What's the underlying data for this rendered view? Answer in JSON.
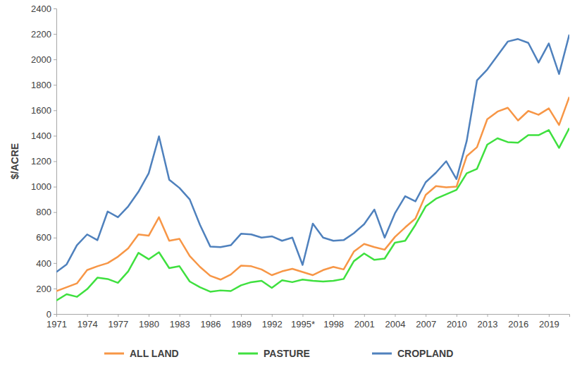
{
  "chart_data": {
    "type": "line",
    "y_label": "$/ACRE",
    "categories": [
      "1971",
      null,
      null,
      "1974",
      null,
      null,
      "1977",
      null,
      null,
      "1980",
      null,
      null,
      "1983",
      null,
      null,
      "1986",
      null,
      null,
      "1989",
      null,
      null,
      "1992",
      null,
      null,
      "1995*",
      null,
      null,
      "1998",
      null,
      null,
      "2001",
      null,
      null,
      "2004",
      null,
      null,
      "2007",
      null,
      null,
      "2010",
      null,
      null,
      "2013",
      null,
      null,
      "2016",
      null,
      null,
      "2019",
      null,
      null
    ],
    "series": [
      {
        "name": "ALL LAND",
        "color": "#f79646",
        "values": [
          180,
          210,
          240,
          345,
          375,
          400,
          450,
          515,
          625,
          615,
          760,
          575,
          590,
          455,
          370,
          300,
          270,
          310,
          380,
          375,
          350,
          305,
          335,
          355,
          330,
          305,
          345,
          370,
          350,
          490,
          550,
          525,
          505,
          605,
          680,
          750,
          935,
          1005,
          995,
          1000,
          1240,
          1310,
          1530,
          1590,
          1620,
          1520,
          1595,
          1565,
          1615,
          1485,
          1705
        ]
      },
      {
        "name": "PASTURE",
        "color": "#3fe03f",
        "values": [
          105,
          155,
          135,
          195,
          285,
          275,
          245,
          335,
          480,
          430,
          485,
          360,
          375,
          255,
          210,
          175,
          185,
          180,
          225,
          250,
          260,
          205,
          265,
          250,
          270,
          260,
          255,
          260,
          275,
          415,
          475,
          425,
          435,
          560,
          575,
          700,
          845,
          905,
          940,
          975,
          1105,
          1140,
          1330,
          1380,
          1350,
          1345,
          1405,
          1405,
          1445,
          1305,
          1460
        ]
      },
      {
        "name": "CROPLAND",
        "color": "#4f81bd",
        "values": [
          330,
          390,
          540,
          625,
          580,
          805,
          760,
          845,
          960,
          1105,
          1395,
          1055,
          990,
          900,
          700,
          530,
          525,
          540,
          630,
          625,
          600,
          610,
          575,
          600,
          385,
          710,
          600,
          575,
          580,
          635,
          705,
          820,
          600,
          790,
          925,
          885,
          1035,
          1110,
          1200,
          1060,
          1360,
          1835,
          1920,
          2030,
          2140,
          2160,
          2130,
          1975,
          2125,
          1885,
          2195
        ]
      }
    ],
    "ylim": [
      0,
      2400
    ],
    "yticks": [
      0,
      200,
      400,
      600,
      800,
      1000,
      1200,
      1400,
      1600,
      1800,
      2000,
      2200,
      2400
    ],
    "grid": false,
    "legend": "bottom"
  }
}
